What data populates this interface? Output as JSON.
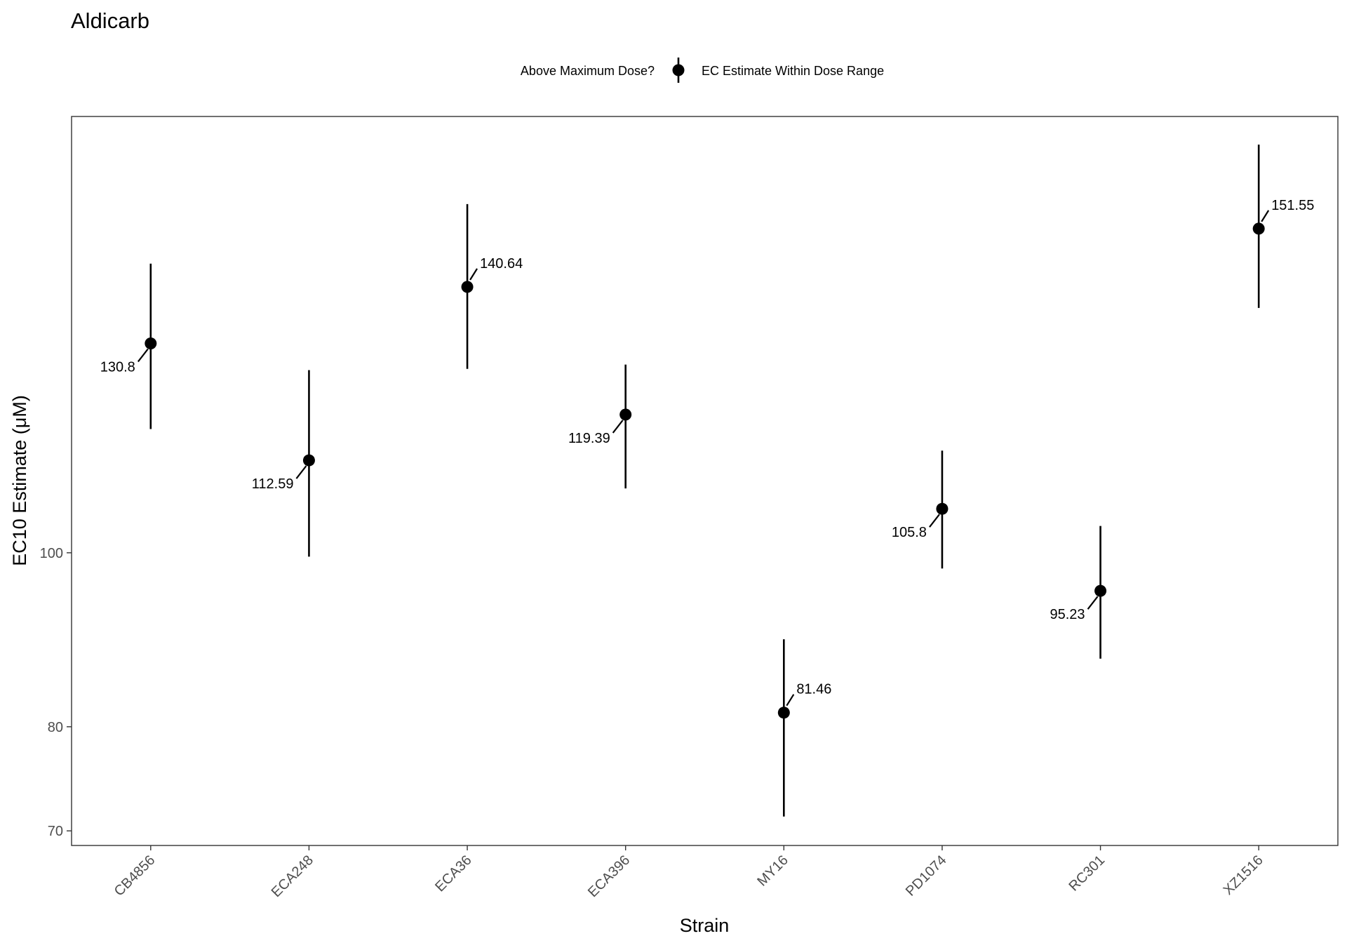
{
  "chart_data": {
    "type": "scatter",
    "title": "Aldicarb",
    "xlabel": "Strain",
    "ylabel": "EC10 Estimate (μM)",
    "y_scale": "log",
    "ylim": [
      68.7,
      175
    ],
    "y_ticks": [
      70,
      80,
      100
    ],
    "legend": {
      "title": "Above Maximum Dose?",
      "entries": [
        "EC Estimate Within Dose Range"
      ],
      "position": "top"
    },
    "grid": false,
    "categories": [
      "CB4856",
      "ECA248",
      "ECA36",
      "ECA396",
      "MY16",
      "PD1074",
      "RC301",
      "XZ1516"
    ],
    "series": [
      {
        "values": [
          130.8,
          112.59,
          140.64,
          119.39,
          81.46,
          105.8,
          95.23,
          151.55
        ],
        "lower": [
          117.2,
          99.5,
          126.6,
          108.6,
          71.3,
          98.0,
          87.3,
          136.9
        ],
        "upper": [
          144.9,
          126.4,
          156.4,
          127.3,
          89.5,
          114.0,
          103.5,
          168.8
        ],
        "labels": [
          "130.8",
          "112.59",
          "140.64",
          "119.39",
          "81.46",
          "105.8",
          "95.23",
          "151.55"
        ],
        "label_side": [
          "left",
          "left",
          "right",
          "left",
          "right",
          "left",
          "left",
          "right"
        ],
        "color": "#000000"
      }
    ]
  }
}
